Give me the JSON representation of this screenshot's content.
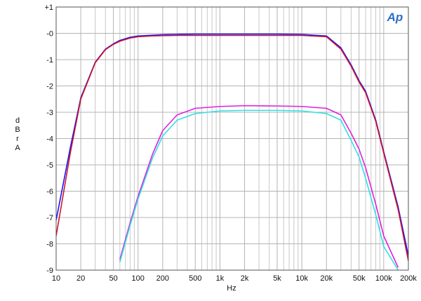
{
  "chart_data": {
    "type": "line",
    "logo": "Ap",
    "xlabel": "Hz",
    "ylabel": "dBr A",
    "xscale": "log",
    "grid": true,
    "xlim": [
      10,
      200000
    ],
    "ylim": [
      -9,
      1
    ],
    "xticks": [
      10,
      20,
      50,
      100,
      200,
      500,
      {
        "value": 1000,
        "label": "1k"
      },
      {
        "value": 2000,
        "label": "2k"
      },
      {
        "value": 5000,
        "label": "5k"
      },
      {
        "value": 10000,
        "label": "10k"
      },
      {
        "value": 20000,
        "label": "20k"
      },
      {
        "value": 50000,
        "label": "50k"
      },
      {
        "value": 100000,
        "label": "100k"
      },
      {
        "value": 200000,
        "label": "200k"
      }
    ],
    "xminor": [
      30,
      40,
      60,
      70,
      80,
      90,
      300,
      400,
      600,
      700,
      800,
      900,
      3000,
      4000,
      6000,
      7000,
      8000,
      9000,
      30000,
      40000,
      60000,
      70000,
      80000,
      90000
    ],
    "yticks": [
      {
        "value": 1,
        "label": "+1"
      },
      {
        "value": 0,
        "label": "-0"
      },
      -1,
      -2,
      -3,
      -4,
      -5,
      -6,
      -7,
      -8,
      -9
    ],
    "x": [
      10,
      15,
      20,
      30,
      40,
      50,
      60,
      80,
      100,
      150,
      200,
      300,
      500,
      1000,
      2000,
      5000,
      10000,
      20000,
      30000,
      40000,
      50000,
      60000,
      80000,
      100000,
      150000,
      200000
    ],
    "series": [
      {
        "color": "#1414ff",
        "values": [
          -7.1,
          -4.3,
          -2.45,
          -1.1,
          -0.6,
          -0.4,
          -0.27,
          -0.15,
          -0.1,
          -0.07,
          -0.05,
          -0.04,
          -0.03,
          -0.03,
          -0.03,
          -0.03,
          -0.04,
          -0.1,
          -0.55,
          -1.2,
          -1.8,
          -2.2,
          -3.3,
          -4.5,
          -6.6,
          -8.45
        ]
      },
      {
        "color": "#d0142a",
        "values": [
          -7.7,
          -4.5,
          -2.5,
          -1.12,
          -0.62,
          -0.42,
          -0.3,
          -0.18,
          -0.13,
          -0.1,
          -0.09,
          -0.08,
          -0.08,
          -0.08,
          -0.08,
          -0.08,
          -0.08,
          -0.13,
          -0.6,
          -1.25,
          -1.85,
          -2.25,
          -3.35,
          -4.55,
          -6.7,
          -8.65
        ]
      },
      {
        "color": "#e020e0",
        "values": [
          null,
          null,
          null,
          null,
          null,
          null,
          -8.6,
          -7.2,
          -6.2,
          -4.6,
          -3.7,
          -3.1,
          -2.85,
          -2.78,
          -2.75,
          -2.76,
          -2.78,
          -2.85,
          -3.1,
          -3.8,
          -4.4,
          -5.1,
          -6.5,
          -7.7,
          -8.9,
          null
        ]
      },
      {
        "color": "#30e0e0",
        "values": [
          null,
          null,
          null,
          null,
          null,
          null,
          -8.7,
          -7.3,
          -6.3,
          -4.75,
          -3.9,
          -3.3,
          -3.05,
          -2.95,
          -2.93,
          -2.93,
          -2.95,
          -3.05,
          -3.3,
          -4.07,
          -4.7,
          -5.5,
          -6.9,
          -8.1,
          -9.0,
          null
        ]
      }
    ]
  }
}
